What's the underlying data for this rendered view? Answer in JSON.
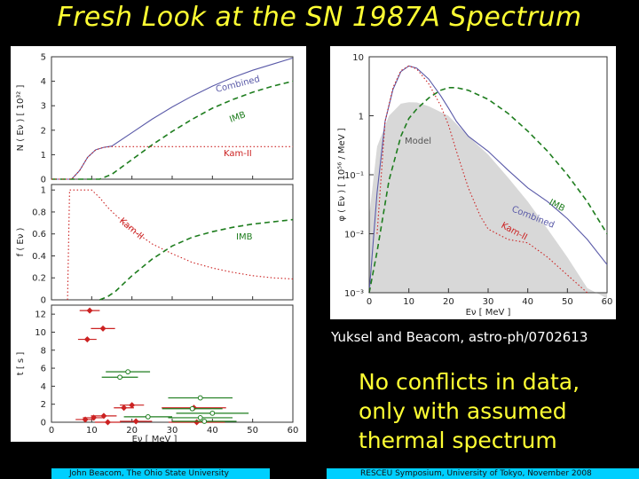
{
  "slide": {
    "title": "Fresh Look at the SN 1987A Spectrum",
    "citation": "Yuksel and Beacom, astro-ph/0702613",
    "message_lines": [
      "No conflicts in data,",
      "only with assumed",
      "thermal spectrum"
    ],
    "footer_left": "John Beacom, The Ohio State University",
    "footer_right": "RESCEU Symposium, University of Tokyo, November 2008"
  },
  "colors": {
    "title": "#ffff33",
    "footer_bg": "#00cfff",
    "combined": "#5a5aa8",
    "imb": "#1e7d1e",
    "kam": "#cc2222",
    "model": "#d8d8d8"
  },
  "chart_data": [
    {
      "id": "top-left",
      "type": "line",
      "ylabel": "N ( Eν ) [ 10³² ]",
      "xlim": [
        0,
        60
      ],
      "ylim": [
        0,
        5
      ],
      "yticks": [
        "0",
        "1",
        "2",
        "3",
        "4",
        "5"
      ],
      "labels": {
        "combined": "Combined",
        "imb": "IMB",
        "kam": "Kam-II"
      },
      "series": [
        {
          "name": "Combined",
          "x": [
            0,
            3,
            5,
            7,
            9,
            11,
            13,
            15,
            20,
            25,
            30,
            35,
            40,
            45,
            50,
            55,
            60
          ],
          "y": [
            0,
            0,
            0,
            0.35,
            0.9,
            1.2,
            1.3,
            1.35,
            1.9,
            2.45,
            2.95,
            3.4,
            3.8,
            4.15,
            4.45,
            4.7,
            4.95
          ]
        },
        {
          "name": "IMB",
          "x": [
            0,
            12,
            15,
            20,
            25,
            30,
            35,
            40,
            45,
            50,
            55,
            60
          ],
          "y": [
            0,
            0,
            0.2,
            0.8,
            1.4,
            1.95,
            2.45,
            2.9,
            3.25,
            3.55,
            3.8,
            4.0
          ]
        },
        {
          "name": "Kam-II",
          "x": [
            0,
            5,
            7,
            9,
            11,
            13,
            15,
            20,
            30,
            40,
            50,
            60
          ],
          "y": [
            0,
            0,
            0.35,
            0.9,
            1.2,
            1.3,
            1.33,
            1.33,
            1.33,
            1.33,
            1.33,
            1.33
          ]
        }
      ]
    },
    {
      "id": "middle-left",
      "type": "line",
      "ylabel": "f ( Eν )",
      "xlim": [
        0,
        60
      ],
      "ylim": [
        0,
        1.05
      ],
      "yticks": [
        "0",
        "0.2",
        "0.4",
        "0.6",
        "0.8",
        "1"
      ],
      "labels": {
        "kam": "Kam-II",
        "imb": "IMB"
      },
      "series": [
        {
          "name": "Kam-II",
          "x": [
            4,
            4.5,
            5,
            10,
            12,
            14,
            16,
            20,
            25,
            30,
            35,
            40,
            45,
            50,
            55,
            60
          ],
          "y": [
            0,
            1,
            1,
            1,
            0.93,
            0.84,
            0.77,
            0.64,
            0.51,
            0.42,
            0.34,
            0.29,
            0.25,
            0.22,
            0.2,
            0.19
          ]
        },
        {
          "name": "IMB",
          "x": [
            12,
            14,
            16,
            20,
            25,
            30,
            35,
            40,
            45,
            50,
            55,
            60
          ],
          "y": [
            0,
            0.03,
            0.08,
            0.22,
            0.37,
            0.49,
            0.57,
            0.62,
            0.66,
            0.69,
            0.71,
            0.73
          ]
        }
      ]
    },
    {
      "id": "bottom-left",
      "type": "scatter",
      "ylabel": "t [ s ]",
      "xlabel": "Eν [ MeV ]",
      "xlim": [
        0,
        60
      ],
      "ylim": [
        0,
        13
      ],
      "yticks": [
        "0",
        "2",
        "4",
        "6",
        "8",
        "10",
        "12"
      ],
      "xticks": [
        "0",
        "10",
        "20",
        "30",
        "40",
        "50",
        "60"
      ],
      "series": [
        {
          "name": "Kam-II",
          "points": [
            {
              "x": 9.5,
              "y": 12.4,
              "xerr": 2.5
            },
            {
              "x": 12.8,
              "y": 10.4,
              "xerr": 3
            },
            {
              "x": 8.9,
              "y": 9.2,
              "xerr": 2.3
            },
            {
              "x": 20,
              "y": 1.9,
              "xerr": 3
            },
            {
              "x": 18,
              "y": 1.6,
              "xerr": 2.5
            },
            {
              "x": 35.4,
              "y": 1.6,
              "xerr": 8
            },
            {
              "x": 13,
              "y": 0.7,
              "xerr": 3.2
            },
            {
              "x": 10.5,
              "y": 0.5,
              "xerr": 2.7
            },
            {
              "x": 8.4,
              "y": 0.3,
              "xerr": 2.4
            },
            {
              "x": 21,
              "y": 0.1,
              "xerr": 4
            },
            {
              "x": 36.1,
              "y": 0.0,
              "xerr": 7
            },
            {
              "x": 14,
              "y": 0.0,
              "xerr": 3.2
            }
          ]
        },
        {
          "name": "IMB",
          "points": [
            {
              "x": 19,
              "y": 5.6,
              "xerr": 5.5
            },
            {
              "x": 17,
              "y": 5.0,
              "xerr": 4.5
            },
            {
              "x": 37,
              "y": 2.7,
              "xerr": 8
            },
            {
              "x": 40,
              "y": 1.0,
              "xerr": 9
            },
            {
              "x": 35,
              "y": 1.5,
              "xerr": 7.5
            },
            {
              "x": 24,
              "y": 0.6,
              "xerr": 6
            },
            {
              "x": 37,
              "y": 0.5,
              "xerr": 8
            },
            {
              "x": 38,
              "y": 0.1,
              "xerr": 8
            }
          ]
        }
      ]
    },
    {
      "id": "right",
      "type": "line",
      "ylabel": "φ ( Eν ) [ 10⁵⁶ / MeV ]",
      "xlabel": "Eν [ MeV ]",
      "xlim": [
        0,
        60
      ],
      "ylim_log10": [
        -3,
        1
      ],
      "xticks": [
        "0",
        "10",
        "20",
        "30",
        "40",
        "50",
        "60"
      ],
      "yticks": [
        "10",
        "1",
        "10⁻¹",
        "10⁻²",
        "10⁻³"
      ],
      "labels": {
        "model": "Model",
        "imb": "IMB",
        "combined": "Combined",
        "kam": "Kam-II"
      },
      "model_band_upper": {
        "x": [
          0,
          2,
          5,
          8,
          10,
          12,
          15,
          20,
          25,
          30,
          35,
          40,
          45,
          50,
          55,
          60
        ],
        "y": [
          0.02,
          0.3,
          1.0,
          1.6,
          1.7,
          1.68,
          1.45,
          1.0,
          0.45,
          0.22,
          0.09,
          0.035,
          0.012,
          0.004,
          0.0012,
          0.0008
        ]
      },
      "model_band_lower": {
        "x": [
          0,
          60
        ],
        "y": [
          0.001,
          0.001
        ]
      },
      "series": [
        {
          "name": "Combined",
          "x": [
            0,
            2,
            4,
            6,
            8,
            10,
            12,
            15,
            18,
            20,
            22,
            25,
            30,
            35,
            40,
            45,
            50,
            55,
            60
          ],
          "y": [
            0.001,
            0.05,
            0.8,
            2.8,
            5.6,
            7.0,
            6.4,
            4.2,
            2.2,
            1.35,
            0.8,
            0.45,
            0.25,
            0.12,
            0.06,
            0.035,
            0.018,
            0.008,
            0.003
          ]
        },
        {
          "name": "IMB",
          "x": [
            0,
            2,
            5,
            8,
            10,
            12,
            15,
            18,
            20,
            22,
            25,
            30,
            35,
            40,
            45,
            50,
            55,
            60
          ],
          "y": [
            0.001,
            0.005,
            0.08,
            0.45,
            0.9,
            1.3,
            2.0,
            2.7,
            3.0,
            3.0,
            2.7,
            1.9,
            1.1,
            0.55,
            0.25,
            0.1,
            0.035,
            0.01
          ]
        },
        {
          "name": "Kam-II",
          "x": [
            2,
            4,
            6,
            8,
            10,
            12,
            15,
            18,
            20,
            22,
            25,
            28,
            30,
            35,
            40,
            45,
            50,
            55
          ],
          "y": [
            0.01,
            0.8,
            3,
            5.8,
            7.0,
            6.2,
            3.5,
            1.5,
            0.7,
            0.25,
            0.06,
            0.02,
            0.012,
            0.008,
            0.007,
            0.004,
            0.002,
            0.001
          ]
        }
      ]
    }
  ]
}
